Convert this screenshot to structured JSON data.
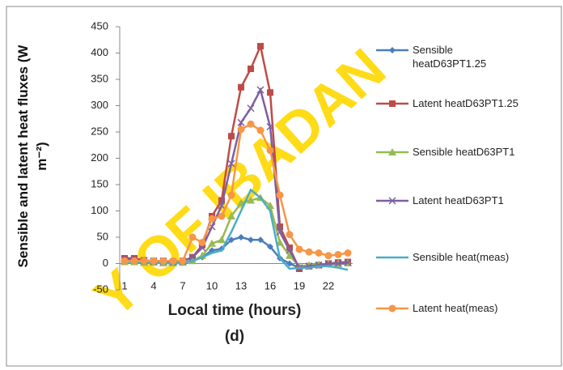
{
  "watermark": "Y OF IBADAN",
  "chart_data": {
    "type": "line",
    "y_label": "Sensible and latent heat fluxes (W m⁻²)",
    "x_label": "Local time (hours)",
    "panel_label": "(d)",
    "categories": [
      "1",
      null,
      null,
      "4",
      null,
      null,
      "7",
      null,
      null,
      "10",
      null,
      null,
      "13",
      null,
      null,
      "16",
      null,
      null,
      "19",
      null,
      null,
      "22",
      null,
      null
    ],
    "ylim": [
      -50,
      450
    ],
    "yticks": [
      -50,
      0,
      50,
      100,
      150,
      200,
      250,
      300,
      350,
      400,
      450
    ],
    "legend": "right",
    "series": [
      {
        "name": "Sensible heatD63PT1.25",
        "color": "#4a7ebb",
        "marker": "diamond",
        "values": [
          5,
          5,
          3,
          2,
          2,
          1,
          2,
          5,
          12,
          25,
          28,
          45,
          50,
          45,
          45,
          32,
          10,
          0,
          -8,
          -5,
          -3,
          -2,
          -1,
          0
        ]
      },
      {
        "name": "Latent heatD63PT1.25",
        "color": "#be4b48",
        "marker": "square",
        "values": [
          10,
          10,
          6,
          5,
          5,
          3,
          5,
          12,
          35,
          90,
          120,
          242,
          335,
          370,
          413,
          325,
          70,
          30,
          -10,
          -5,
          -3,
          0,
          2,
          3
        ]
      },
      {
        "name": "Sensible heatD63PT1",
        "color": "#98b954",
        "marker": "triangle",
        "values": [
          3,
          3,
          2,
          2,
          1,
          1,
          2,
          5,
          15,
          38,
          45,
          90,
          115,
          120,
          125,
          110,
          40,
          15,
          -5,
          -3,
          -2,
          -1,
          0,
          1
        ]
      },
      {
        "name": "Latent heatD63PT1",
        "color": "#7d60a0",
        "marker": "x",
        "values": [
          8,
          8,
          5,
          4,
          4,
          3,
          4,
          12,
          30,
          70,
          110,
          190,
          268,
          295,
          330,
          260,
          60,
          25,
          -8,
          -5,
          -3,
          0,
          0,
          2
        ]
      },
      {
        "name": "Sensible heat(meas)",
        "color": "#4bacc6",
        "marker": "none",
        "values": [
          3,
          3,
          2,
          1,
          1,
          0,
          1,
          5,
          12,
          20,
          25,
          60,
          100,
          140,
          125,
          100,
          10,
          -10,
          -8,
          -8,
          -5,
          -5,
          -8,
          -12
        ]
      },
      {
        "name": "Latent heat(meas)",
        "color": "#f79646",
        "marker": "circle",
        "values": [
          5,
          5,
          5,
          5,
          5,
          5,
          5,
          50,
          40,
          85,
          90,
          130,
          255,
          265,
          253,
          215,
          130,
          55,
          27,
          22,
          20,
          15,
          17,
          20
        ]
      }
    ]
  }
}
